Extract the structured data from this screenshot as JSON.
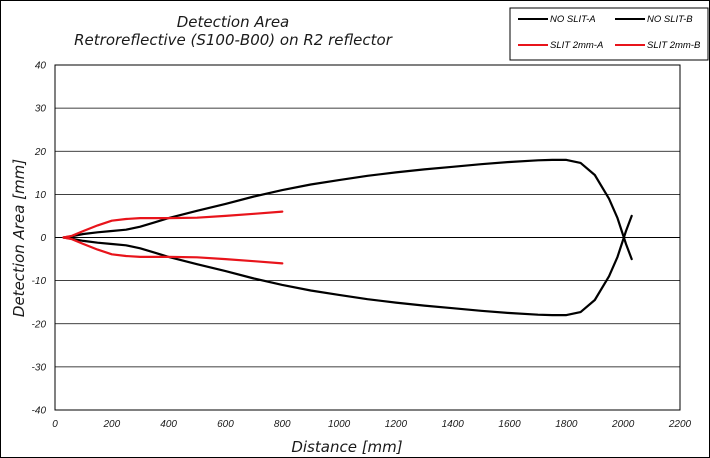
{
  "chart_data": {
    "type": "line",
    "title": "Detection Area",
    "subtitle": "Retroreflective (S100-B00) on R2 reflector",
    "xlabel": "Distance [mm]",
    "ylabel": "Detection Area [mm]",
    "xlim": [
      0,
      2200
    ],
    "ylim": [
      -40,
      40
    ],
    "xticks": [
      0,
      200,
      400,
      600,
      800,
      1000,
      1200,
      1400,
      1600,
      1800,
      2000,
      2200
    ],
    "yticks": [
      -40,
      -30,
      -20,
      -10,
      0,
      10,
      20,
      30,
      40
    ],
    "xtick_labels": [
      "0",
      "200",
      "400",
      "600",
      "800",
      "1000",
      "1200",
      "1400",
      "1600",
      "1800",
      "2000",
      "2200"
    ],
    "ytick_labels": [
      "-40",
      "-30",
      "-20",
      "-10",
      "0",
      "10",
      "20",
      "30",
      "40"
    ],
    "grid": "horizontal",
    "legend_position": "top-right",
    "series": [
      {
        "name": "NO SLIT-A",
        "color": "#000000",
        "x": [
          30,
          60,
          100,
          150,
          200,
          250,
          300,
          350,
          400,
          500,
          600,
          700,
          800,
          900,
          1000,
          1100,
          1200,
          1300,
          1400,
          1500,
          1600,
          1700,
          1750,
          1800,
          1850,
          1900,
          1950,
          1980,
          2010,
          2030
        ],
        "y": [
          0,
          0.3,
          0.8,
          1.2,
          1.5,
          1.8,
          2.5,
          3.5,
          4.5,
          6.2,
          7.8,
          9.5,
          11,
          12.3,
          13.3,
          14.3,
          15.1,
          15.8,
          16.4,
          17,
          17.5,
          17.9,
          18,
          18,
          17.3,
          14.5,
          9,
          4.5,
          -1.5,
          -5
        ]
      },
      {
        "name": "NO SLIT-B",
        "color": "#000000",
        "x": [
          30,
          60,
          100,
          150,
          200,
          250,
          300,
          350,
          400,
          500,
          600,
          700,
          800,
          900,
          1000,
          1100,
          1200,
          1300,
          1400,
          1500,
          1600,
          1700,
          1750,
          1800,
          1850,
          1900,
          1950,
          1980,
          2010,
          2030
        ],
        "y": [
          0,
          -0.3,
          -0.8,
          -1.2,
          -1.5,
          -1.8,
          -2.5,
          -3.5,
          -4.5,
          -6.2,
          -7.8,
          -9.5,
          -11,
          -12.3,
          -13.3,
          -14.3,
          -15.1,
          -15.8,
          -16.4,
          -17,
          -17.5,
          -17.9,
          -18,
          -18,
          -17.3,
          -14.5,
          -9,
          -4.5,
          1.5,
          5
        ]
      },
      {
        "name": "SLIT 2mm-A",
        "color": "#e8141b",
        "x": [
          30,
          60,
          100,
          150,
          200,
          250,
          300,
          350,
          400,
          500,
          600,
          700,
          800
        ],
        "y": [
          0,
          0.4,
          1.5,
          2.8,
          3.9,
          4.3,
          4.5,
          4.5,
          4.5,
          4.6,
          5,
          5.5,
          6
        ]
      },
      {
        "name": "SLIT 2mm-B",
        "color": "#e8141b",
        "x": [
          30,
          60,
          100,
          150,
          200,
          250,
          300,
          350,
          400,
          500,
          600,
          700,
          800
        ],
        "y": [
          0,
          -0.4,
          -1.5,
          -2.8,
          -3.9,
          -4.3,
          -4.5,
          -4.5,
          -4.5,
          -4.6,
          -5,
          -5.5,
          -6
        ]
      }
    ]
  }
}
